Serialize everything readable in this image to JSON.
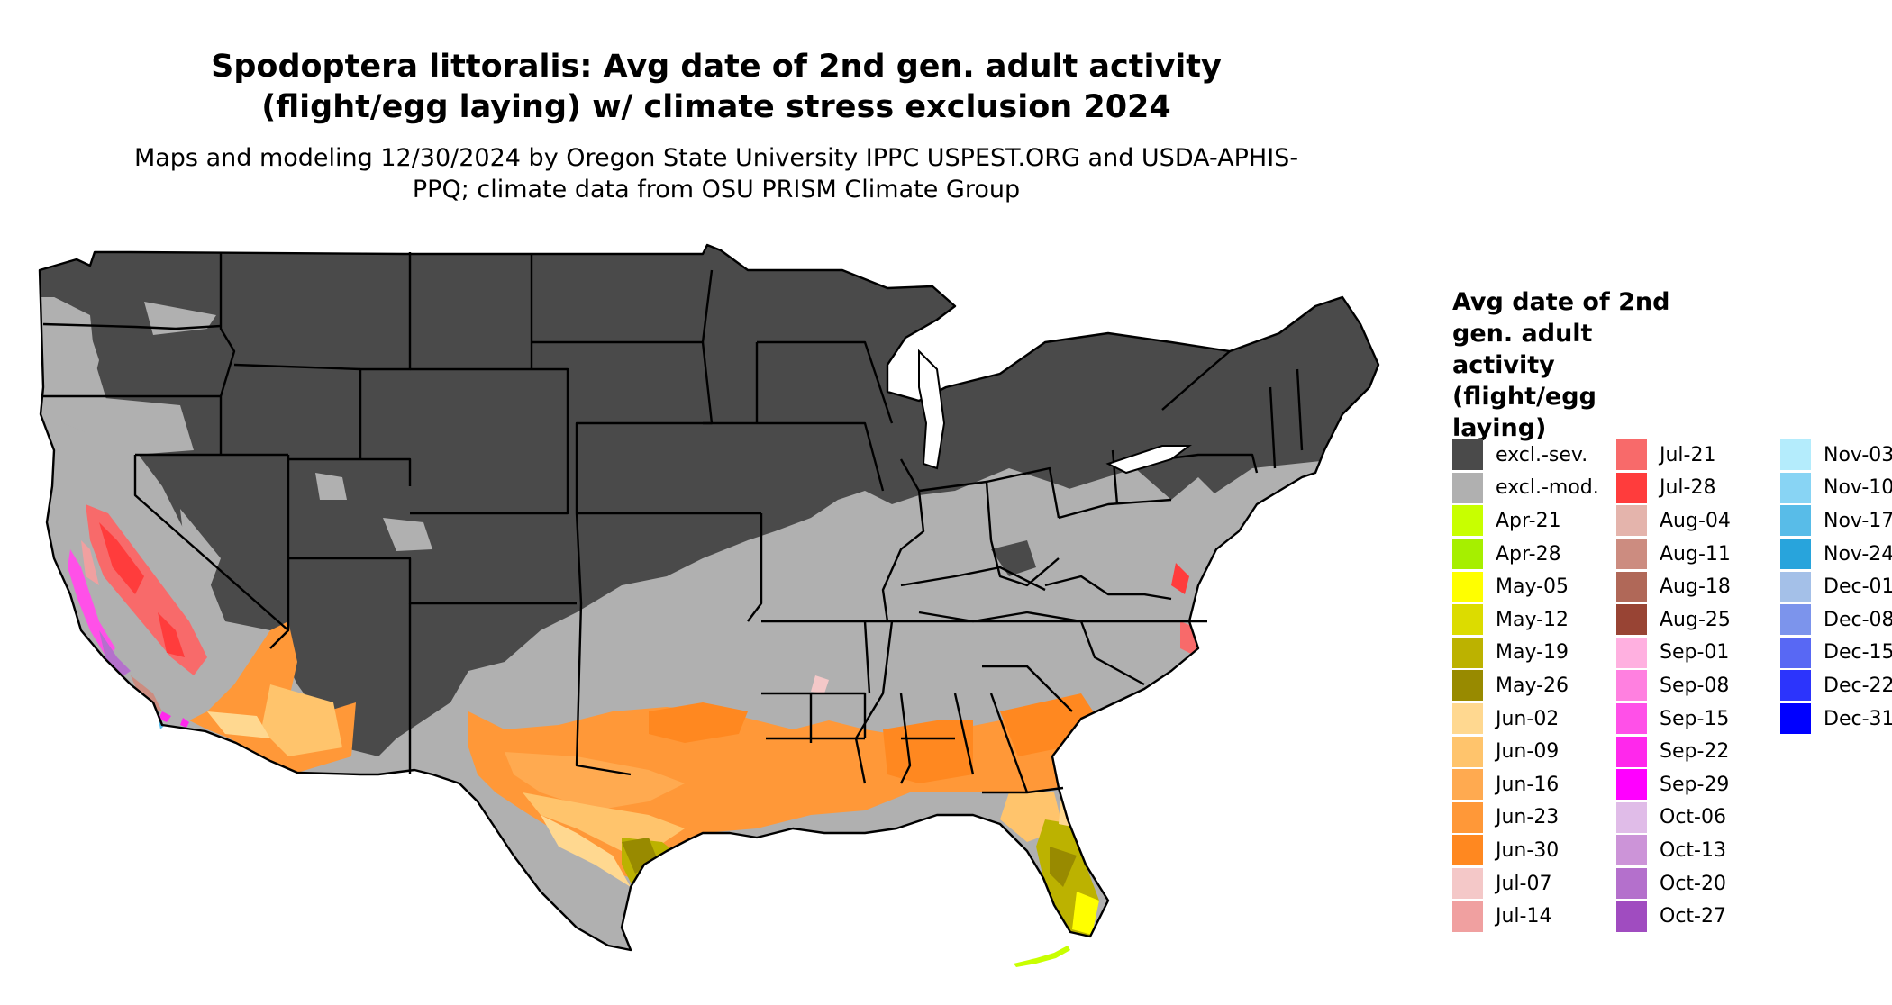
{
  "title": "Spodoptera littoralis: Avg date of 2nd gen. adult activity (flight/egg laying) w/ climate stress exclusion 2024",
  "subtitle": "Maps and modeling 12/30/2024 by Oregon State University IPPC USPEST.ORG and USDA-APHIS-PPQ; climate data from OSU PRISM Climate Group",
  "legend": {
    "title": "Avg date of 2nd gen. adult activity (flight/egg laying)",
    "columns": [
      [
        {
          "label": "excl.-sev.",
          "color": "#4a4a4a"
        },
        {
          "label": "excl.-mod.",
          "color": "#b0b0b0"
        },
        {
          "label": "Apr-21",
          "color": "#c8ff00"
        },
        {
          "label": "Apr-28",
          "color": "#a6ef00"
        },
        {
          "label": "May-05",
          "color": "#ffff00"
        },
        {
          "label": "May-12",
          "color": "#dcdc00"
        },
        {
          "label": "May-19",
          "color": "#bcb200"
        },
        {
          "label": "May-26",
          "color": "#988a00"
        },
        {
          "label": "Jun-02",
          "color": "#ffd890"
        },
        {
          "label": "Jun-09",
          "color": "#ffc46c"
        },
        {
          "label": "Jun-16",
          "color": "#ffaa50"
        },
        {
          "label": "Jun-23",
          "color": "#ff9838"
        },
        {
          "label": "Jun-30",
          "color": "#ff8820"
        },
        {
          "label": "Jul-07",
          "color": "#f4c8c8"
        },
        {
          "label": "Jul-14",
          "color": "#f0a0a0"
        }
      ],
      [
        {
          "label": "Jul-21",
          "color": "#f86a6a"
        },
        {
          "label": "Jul-28",
          "color": "#ff3c3c"
        },
        {
          "label": "Aug-04",
          "color": "#e4b4ac"
        },
        {
          "label": "Aug-11",
          "color": "#cc8c80"
        },
        {
          "label": "Aug-18",
          "color": "#b06858"
        },
        {
          "label": "Aug-25",
          "color": "#984434"
        },
        {
          "label": "Sep-01",
          "color": "#ffb0e0"
        },
        {
          "label": "Sep-08",
          "color": "#ff80e0"
        },
        {
          "label": "Sep-15",
          "color": "#ff50e8"
        },
        {
          "label": "Sep-22",
          "color": "#ff28ec"
        },
        {
          "label": "Sep-29",
          "color": "#ff00ff"
        },
        {
          "label": "Oct-06",
          "color": "#e0bce8"
        },
        {
          "label": "Oct-13",
          "color": "#cc94d8"
        },
        {
          "label": "Oct-20",
          "color": "#b470cc"
        },
        {
          "label": "Oct-27",
          "color": "#a04cc0"
        }
      ],
      [
        {
          "label": "Nov-03",
          "color": "#b4ecfc"
        },
        {
          "label": "Nov-10",
          "color": "#88d4f4"
        },
        {
          "label": "Nov-17",
          "color": "#58bce8"
        },
        {
          "label": "Nov-24",
          "color": "#28a4dc"
        },
        {
          "label": "Dec-01",
          "color": "#a4c0e8"
        },
        {
          "label": "Dec-08",
          "color": "#7c94ec"
        },
        {
          "label": "Dec-15",
          "color": "#5868f4"
        },
        {
          "label": "Dec-22",
          "color": "#2c34fc"
        },
        {
          "label": "Dec-31",
          "color": "#0000ff"
        }
      ]
    ]
  }
}
